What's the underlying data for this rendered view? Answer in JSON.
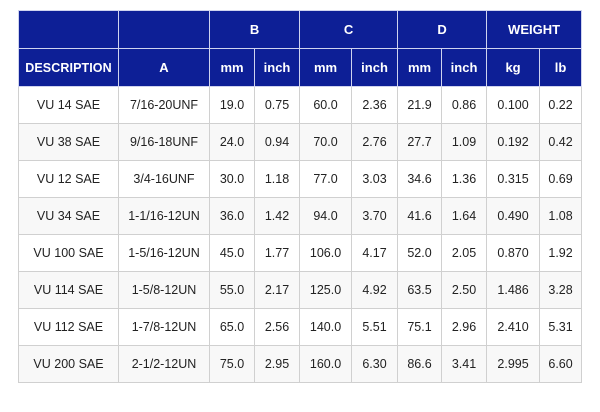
{
  "table": {
    "group_headers": {
      "b": "B",
      "c": "C",
      "d": "D",
      "weight": "WEIGHT"
    },
    "sub_headers": {
      "description": "DESCRIPTION",
      "a": "A",
      "b_mm": "mm",
      "b_inch": "inch",
      "c_mm": "mm",
      "c_inch": "inch",
      "d_mm": "mm",
      "d_inch": "inch",
      "weight_kg": "kg",
      "weight_lb": "lb"
    },
    "rows": [
      {
        "description": "VU 14 SAE",
        "a": "7/16-20UNF",
        "b_mm": "19.0",
        "b_inch": "0.75",
        "c_mm": "60.0",
        "c_inch": "2.36",
        "d_mm": "21.9",
        "d_inch": "0.86",
        "kg": "0.100",
        "lb": "0.22"
      },
      {
        "description": "VU 38 SAE",
        "a": "9/16-18UNF",
        "b_mm": "24.0",
        "b_inch": "0.94",
        "c_mm": "70.0",
        "c_inch": "2.76",
        "d_mm": "27.7",
        "d_inch": "1.09",
        "kg": "0.192",
        "lb": "0.42"
      },
      {
        "description": "VU 12 SAE",
        "a": "3/4-16UNF",
        "b_mm": "30.0",
        "b_inch": "1.18",
        "c_mm": "77.0",
        "c_inch": "3.03",
        "d_mm": "34.6",
        "d_inch": "1.36",
        "kg": "0.315",
        "lb": "0.69"
      },
      {
        "description": "VU 34 SAE",
        "a": "1-1/16-12UN",
        "b_mm": "36.0",
        "b_inch": "1.42",
        "c_mm": "94.0",
        "c_inch": "3.70",
        "d_mm": "41.6",
        "d_inch": "1.64",
        "kg": "0.490",
        "lb": "1.08"
      },
      {
        "description": "VU 100 SAE",
        "a": "1-5/16-12UN",
        "b_mm": "45.0",
        "b_inch": "1.77",
        "c_mm": "106.0",
        "c_inch": "4.17",
        "d_mm": "52.0",
        "d_inch": "2.05",
        "kg": "0.870",
        "lb": "1.92"
      },
      {
        "description": "VU 114 SAE",
        "a": "1-5/8-12UN",
        "b_mm": "55.0",
        "b_inch": "2.17",
        "c_mm": "125.0",
        "c_inch": "4.92",
        "d_mm": "63.5",
        "d_inch": "2.50",
        "kg": "1.486",
        "lb": "3.28"
      },
      {
        "description": "VU 112 SAE",
        "a": "1-7/8-12UN",
        "b_mm": "65.0",
        "b_inch": "2.56",
        "c_mm": "140.0",
        "c_inch": "5.51",
        "d_mm": "75.1",
        "d_inch": "2.96",
        "kg": "2.410",
        "lb": "5.31"
      },
      {
        "description": "VU 200 SAE",
        "a": "2-1/2-12UN",
        "b_mm": "75.0",
        "b_inch": "2.95",
        "c_mm": "160.0",
        "c_inch": "6.30",
        "d_mm": "86.6",
        "d_inch": "3.41",
        "kg": "2.995",
        "lb": "6.60"
      }
    ]
  },
  "colors": {
    "header_background": "#0d1f96",
    "header_text": "#ffffff",
    "body_text": "#222222",
    "grid_line": "#d0d0d0"
  }
}
